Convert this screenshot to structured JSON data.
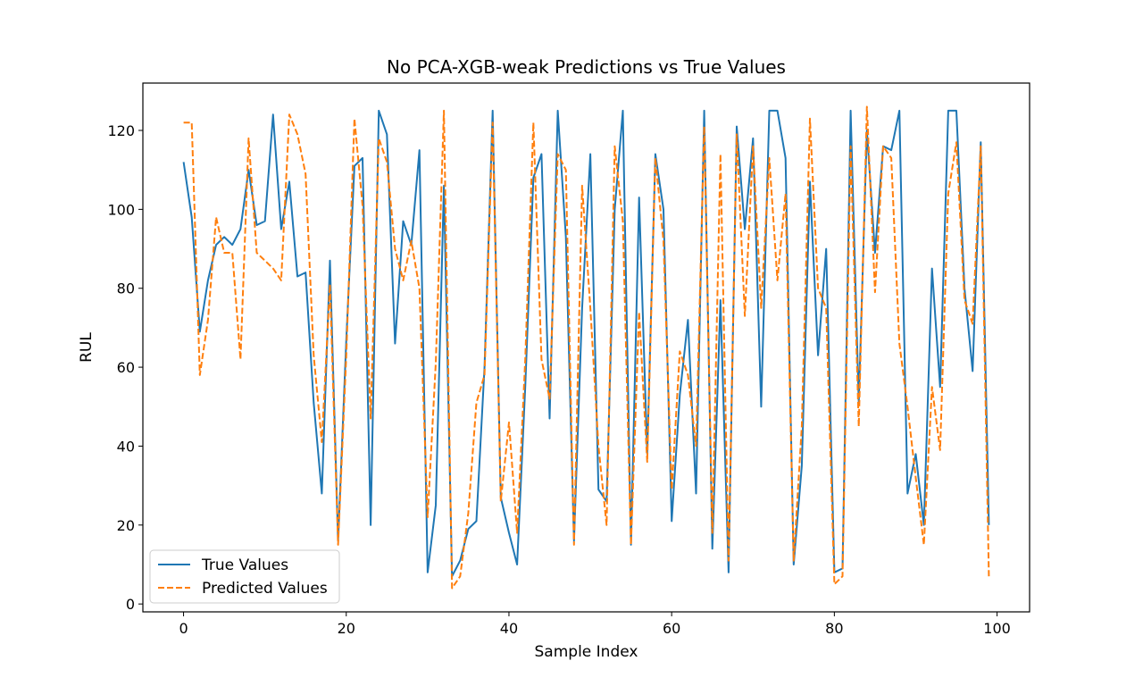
{
  "chart_data": {
    "type": "line",
    "title": "No PCA-XGB-weak Predictions vs True Values",
    "xlabel": "Sample Index",
    "ylabel": "RUL",
    "xlim": [
      -5,
      104
    ],
    "ylim": [
      -2,
      132
    ],
    "xticks": [
      0,
      20,
      40,
      60,
      80,
      100
    ],
    "yticks": [
      0,
      20,
      40,
      60,
      80,
      100,
      120
    ],
    "grid": false,
    "legend_position": "lower-left",
    "x": [
      0,
      1,
      2,
      3,
      4,
      5,
      6,
      7,
      8,
      9,
      10,
      11,
      12,
      13,
      14,
      15,
      16,
      17,
      18,
      19,
      20,
      21,
      22,
      23,
      24,
      25,
      26,
      27,
      28,
      29,
      30,
      31,
      32,
      33,
      34,
      35,
      36,
      37,
      38,
      39,
      40,
      41,
      42,
      43,
      44,
      45,
      46,
      47,
      48,
      49,
      50,
      51,
      52,
      53,
      54,
      55,
      56,
      57,
      58,
      59,
      60,
      61,
      62,
      63,
      64,
      65,
      66,
      67,
      68,
      69,
      70,
      71,
      72,
      73,
      74,
      75,
      76,
      77,
      78,
      79,
      80,
      81,
      82,
      83,
      84,
      85,
      86,
      87,
      88,
      89,
      90,
      91,
      92,
      93,
      94,
      95,
      96,
      97,
      98,
      99
    ],
    "series": [
      {
        "name": "True Values",
        "color": "#1f77b4",
        "style": "solid",
        "values": [
          112,
          98,
          69,
          82,
          91,
          93,
          91,
          95,
          110,
          96,
          97,
          124,
          95,
          107,
          83,
          84,
          51,
          28,
          87,
          16,
          67,
          111,
          113,
          20,
          125,
          119,
          66,
          97,
          91,
          115,
          8,
          25,
          106,
          7,
          11,
          19,
          21,
          60,
          125,
          27,
          18,
          10,
          55,
          108,
          114,
          47,
          125,
          93,
          16,
          75,
          114,
          29,
          26,
          100,
          125,
          15,
          103,
          38,
          114,
          100,
          21,
          53,
          72,
          28,
          125,
          14,
          77,
          8,
          121,
          95,
          118,
          50,
          125,
          125,
          113,
          10,
          35,
          107,
          63,
          90,
          8,
          9,
          125,
          51,
          120,
          89,
          116,
          115,
          125,
          28,
          38,
          20,
          85,
          55,
          125,
          125,
          80,
          59,
          117,
          20
        ]
      },
      {
        "name": "Predicted Values",
        "color": "#ff7f0e",
        "style": "dashed",
        "values": [
          122,
          122,
          58,
          72,
          98,
          89,
          89,
          62,
          118,
          89,
          87,
          85,
          82,
          124,
          119,
          109,
          63,
          41,
          81,
          15,
          63,
          123,
          101,
          47,
          118,
          112,
          90,
          82,
          92,
          80,
          22,
          61,
          125,
          4,
          7,
          23,
          51,
          58,
          122,
          26,
          46,
          18,
          62,
          122,
          62,
          52,
          114,
          110,
          15,
          106,
          75,
          40,
          20,
          116,
          97,
          15,
          74,
          36,
          113,
          92,
          29,
          64,
          58,
          40,
          121,
          18,
          114,
          11,
          119,
          73,
          116,
          75,
          113,
          82,
          104,
          11,
          45,
          123,
          80,
          75,
          5,
          7,
          116,
          45,
          126,
          79,
          116,
          113,
          66,
          50,
          32,
          15,
          55,
          39,
          104,
          117,
          77,
          71,
          116,
          7
        ]
      }
    ]
  }
}
